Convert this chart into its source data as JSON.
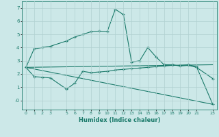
{
  "xlabel": "Humidex (Indice chaleur)",
  "bg_color": "#cce8e8",
  "grid_color": "#b0d0d0",
  "line_color": "#1a7a6a",
  "xlim": [
    -0.5,
    23.5
  ],
  "ylim": [
    -0.7,
    7.5
  ],
  "xticks": [
    0,
    1,
    2,
    3,
    5,
    6,
    7,
    8,
    9,
    10,
    11,
    12,
    13,
    14,
    15,
    16,
    17,
    18,
    19,
    20,
    21,
    23
  ],
  "yticks": [
    0,
    1,
    2,
    3,
    4,
    5,
    6,
    7
  ],
  "ytick_labels": [
    "-0",
    "1",
    "2",
    "3",
    "4",
    "5",
    "6",
    "7"
  ],
  "series": [
    {
      "x": [
        0,
        1,
        2,
        3,
        5,
        6,
        7,
        8,
        9,
        10,
        11,
        12,
        13,
        14,
        15,
        16,
        17,
        18,
        19,
        20,
        21,
        23
      ],
      "y": [
        2.5,
        3.9,
        4.0,
        4.1,
        4.5,
        4.8,
        5.0,
        5.2,
        5.25,
        5.2,
        6.9,
        6.5,
        2.9,
        3.0,
        4.0,
        3.3,
        2.7,
        2.7,
        2.6,
        2.65,
        2.5,
        1.65
      ],
      "has_markers": true
    },
    {
      "x": [
        0,
        1,
        2,
        3,
        5,
        6,
        7,
        8,
        9,
        10,
        11,
        12,
        13,
        14,
        15,
        16,
        17,
        18,
        19,
        20,
        21,
        23
      ],
      "y": [
        2.5,
        1.8,
        1.75,
        1.7,
        0.85,
        1.3,
        2.2,
        2.1,
        2.15,
        2.2,
        2.3,
        2.35,
        2.4,
        2.45,
        2.5,
        2.55,
        2.6,
        2.65,
        2.65,
        2.7,
        2.55,
        -0.3
      ],
      "has_markers": true
    },
    {
      "x": [
        0,
        23
      ],
      "y": [
        2.5,
        2.7
      ],
      "has_markers": false
    },
    {
      "x": [
        0,
        23
      ],
      "y": [
        2.5,
        -0.3
      ],
      "has_markers": false
    }
  ]
}
